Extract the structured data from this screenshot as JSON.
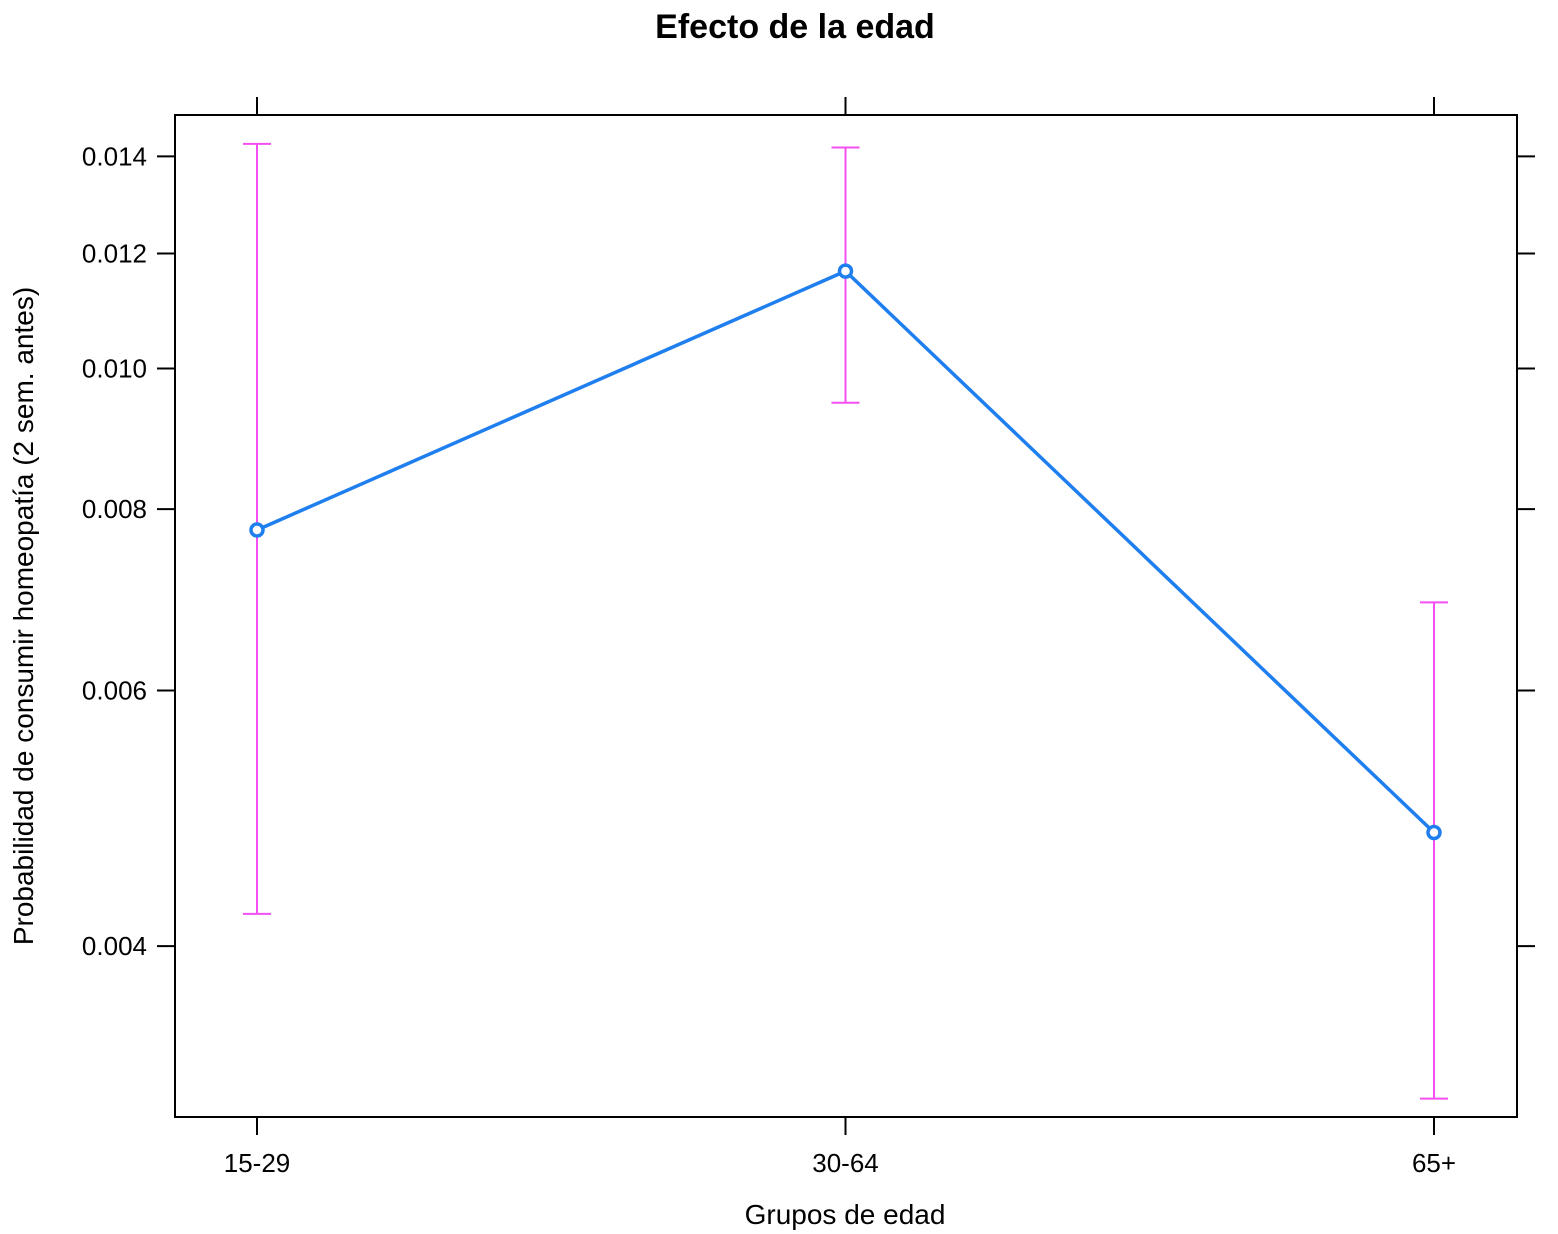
{
  "chart_data": {
    "type": "line",
    "title": "Efecto de la edad",
    "xlabel": "Grupos de edad",
    "ylabel": "Probabilidad de consumir homeopatía (2 sem. antes)",
    "categories": [
      "15-29",
      "30-64",
      "65+"
    ],
    "series": [
      {
        "values": [
          0.00774,
          0.01167,
          0.00479
        ],
        "lower": [
          0.00421,
          0.00947,
          0.00314
        ],
        "upper": [
          0.01428,
          0.0142,
          0.0069
        ],
        "color": "#1f7fef",
        "errorbar_color": "#f34ff3"
      }
    ],
    "yscale": "log",
    "ylim": [
      0.00305,
      0.01495
    ],
    "yticks": [
      0.004,
      0.006,
      0.008,
      0.01,
      0.012,
      0.014
    ],
    "ytick_labels": [
      "0.004",
      "0.006",
      "0.008",
      "0.010",
      "0.012",
      "0.014"
    ],
    "grid": false,
    "legend": "none"
  }
}
